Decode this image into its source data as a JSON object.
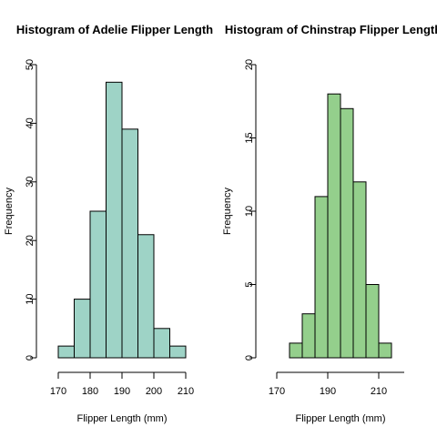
{
  "chart_data": [
    {
      "type": "bar",
      "title": "Histogram of Adelie Flipper Length",
      "xlabel": "Flipper Length (mm)",
      "ylabel": "Frequency",
      "color": "#9ed3c6",
      "bins": [
        [
          170,
          175
        ],
        [
          175,
          180
        ],
        [
          180,
          185
        ],
        [
          185,
          190
        ],
        [
          190,
          195
        ],
        [
          195,
          200
        ],
        [
          200,
          205
        ],
        [
          205,
          210
        ]
      ],
      "values": [
        2,
        10,
        25,
        47,
        39,
        21,
        5,
        2
      ],
      "xlim": [
        170,
        210
      ],
      "ylim": [
        0,
        50
      ],
      "xticks": [
        "170",
        "180",
        "190",
        "200",
        "210"
      ],
      "yticks": [
        "0",
        "10",
        "20",
        "30",
        "40",
        "50"
      ],
      "grid": false,
      "legend": "none"
    },
    {
      "type": "bar",
      "title": "Histogram of Chinstrap Flipper Length",
      "xlabel": "Flipper Length (mm)",
      "ylabel": "Frequency",
      "color": "#94cf8c",
      "bins": [
        [
          175,
          180
        ],
        [
          180,
          185
        ],
        [
          185,
          190
        ],
        [
          190,
          195
        ],
        [
          195,
          200
        ],
        [
          200,
          205
        ],
        [
          205,
          210
        ],
        [
          210,
          215
        ]
      ],
      "values": [
        1,
        3,
        11,
        18,
        17,
        12,
        5,
        1
      ],
      "xlim": [
        170,
        220
      ],
      "ylim": [
        0,
        20
      ],
      "xticks": [
        "170",
        "190",
        "210"
      ],
      "yticks": [
        "0",
        "5",
        "10",
        "15",
        "20"
      ],
      "grid": false,
      "legend": "none"
    }
  ]
}
